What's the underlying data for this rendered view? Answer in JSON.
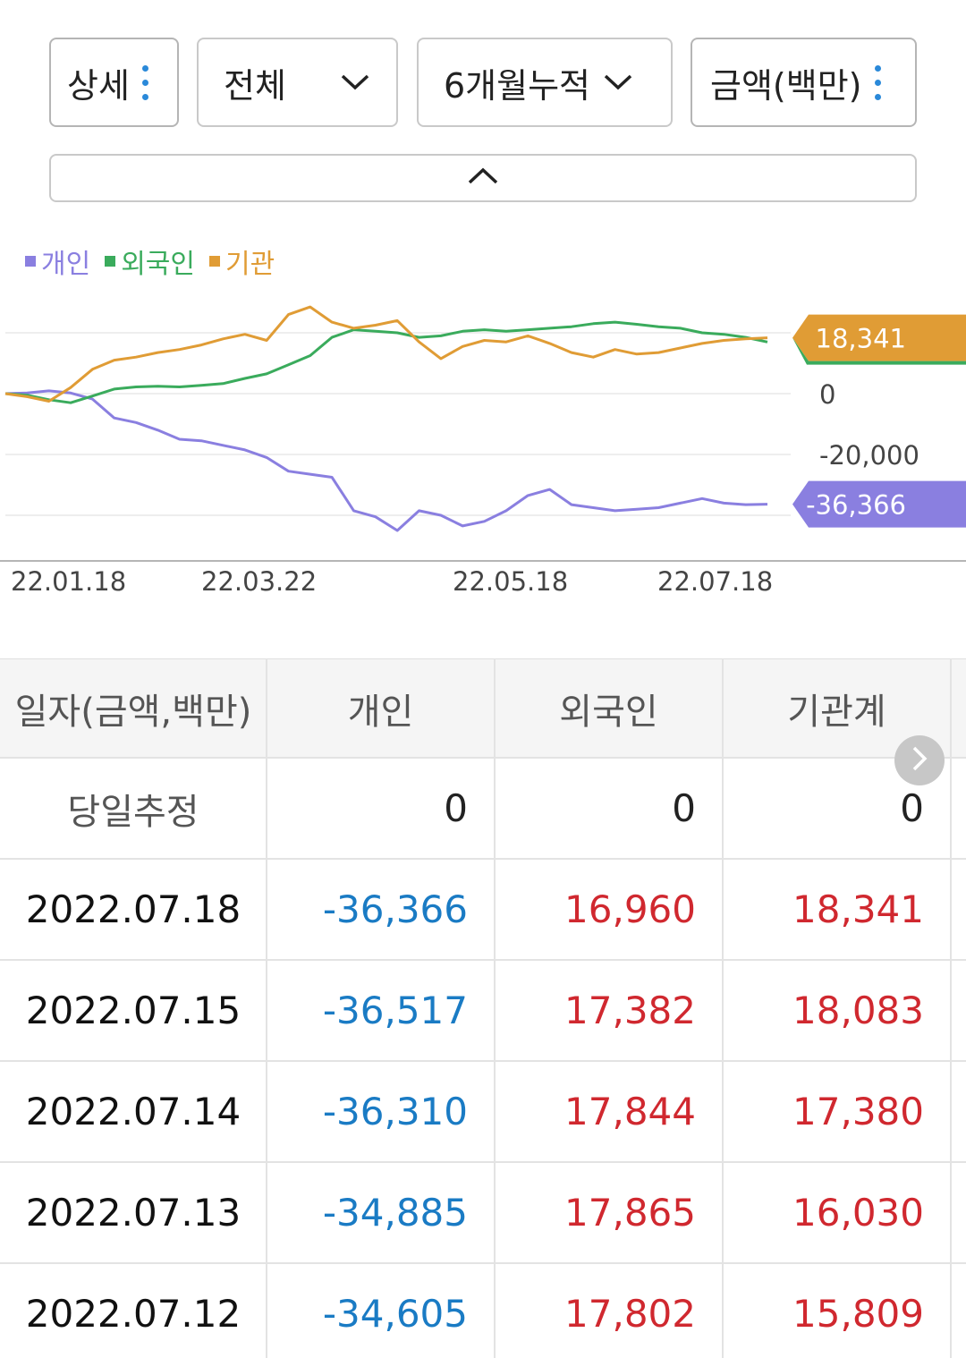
{
  "filters": {
    "detail": {
      "label": "상세",
      "icon": "kebab-icon"
    },
    "scope": {
      "label": "전체",
      "icon": "chevron-down-icon"
    },
    "period": {
      "label": "6개월누적",
      "icon": "chevron-down-icon"
    },
    "unit": {
      "label": "금액(백만)",
      "icon": "kebab-icon"
    }
  },
  "collapse": {
    "icon": "chevron-up-icon"
  },
  "legend": [
    {
      "name": "개인",
      "color": "#8a7fe0"
    },
    {
      "name": "외국인",
      "color": "#3aab5c"
    },
    {
      "name": "기관",
      "color": "#e09c35"
    }
  ],
  "chart_data": {
    "type": "line",
    "x_ticks": [
      "22.01.18",
      "22.03.22",
      "22.05.18",
      "22.07.18"
    ],
    "y_ticks": [
      "0",
      "-20,000"
    ],
    "ylim": [
      -50000,
      30000
    ],
    "end_labels": [
      {
        "value": "18,341",
        "color": "#e09c35"
      },
      {
        "value": "-36,366",
        "color": "#8a7fe0"
      }
    ],
    "series": [
      {
        "name": "개인",
        "color": "#8a7fe0",
        "values": [
          0,
          200,
          900,
          200,
          -1800,
          -8000,
          -9500,
          -12000,
          -15000,
          -15500,
          -17000,
          -18500,
          -21000,
          -25500,
          -26500,
          -27500,
          -38500,
          -40500,
          -45000,
          -38500,
          -40000,
          -43500,
          -42000,
          -38500,
          -33500,
          -31500,
          -36500,
          -37500,
          -38500,
          -38000,
          -37500,
          -36000,
          -34500,
          -36000,
          -36500,
          -36366
        ]
      },
      {
        "name": "외국인",
        "color": "#3aab5c",
        "values": [
          0,
          -500,
          -2000,
          -3000,
          -800,
          1500,
          2200,
          2400,
          2200,
          2700,
          3300,
          5000,
          6500,
          9500,
          12500,
          18500,
          21000,
          20500,
          20000,
          18500,
          19000,
          20500,
          21000,
          20500,
          21000,
          21500,
          22000,
          23000,
          23500,
          22800,
          22000,
          21500,
          20000,
          19500,
          18500,
          16960
        ]
      },
      {
        "name": "기관",
        "color": "#e09c35",
        "values": [
          0,
          -1000,
          -2500,
          2000,
          8000,
          11000,
          12000,
          13500,
          14500,
          16000,
          18000,
          19500,
          17500,
          26000,
          28500,
          23500,
          21500,
          22500,
          24000,
          17000,
          11500,
          15500,
          17500,
          17000,
          19000,
          16500,
          13500,
          12000,
          14500,
          13000,
          13500,
          15000,
          16500,
          17500,
          18000,
          18341
        ]
      }
    ]
  },
  "table": {
    "headers": [
      "일자(금액,백만)",
      "개인",
      "외국인",
      "기관계"
    ],
    "rows": [
      {
        "date": "당일추정",
        "individual": "0",
        "foreign": "0",
        "institution": "0"
      },
      {
        "date": "2022.07.18",
        "individual": "-36,366",
        "foreign": "16,960",
        "institution": "18,341"
      },
      {
        "date": "2022.07.15",
        "individual": "-36,517",
        "foreign": "17,382",
        "institution": "18,083"
      },
      {
        "date": "2022.07.14",
        "individual": "-36,310",
        "foreign": "17,844",
        "institution": "17,380"
      },
      {
        "date": "2022.07.13",
        "individual": "-34,885",
        "foreign": "17,865",
        "institution": "16,030"
      },
      {
        "date": "2022.07.12",
        "individual": "-34,605",
        "foreign": "17,802",
        "institution": "15,809"
      }
    ]
  },
  "colors": {
    "negative": "#1a7bc4",
    "positive": "#d0282f"
  }
}
